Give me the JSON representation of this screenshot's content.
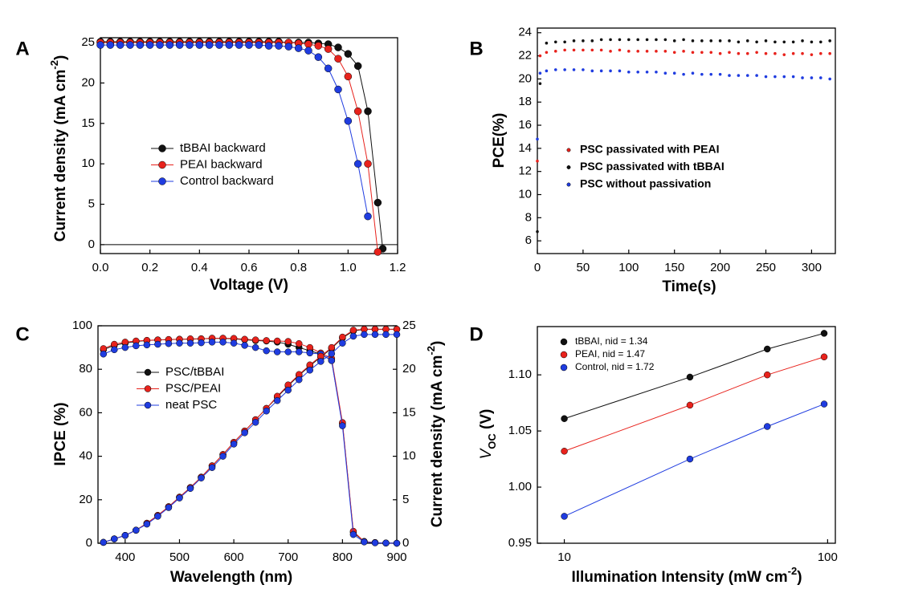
{
  "chart_data": [
    {
      "type": "line",
      "panel_label": "A",
      "x_label": [
        "Voltage (V)"
      ],
      "y_label": [
        "Current density (mA cm",
        "-2",
        ")"
      ],
      "xlim": [
        0,
        1.2
      ],
      "ylim": [
        -1.1,
        25.6
      ],
      "xticks": [
        {
          "value": 0,
          "label": "0.0"
        },
        0.2,
        0.4,
        0.6,
        0.8,
        {
          "value": 1,
          "label": "1.0"
        },
        1.2
      ],
      "yticks": [
        0,
        5,
        10,
        15,
        20,
        25
      ],
      "zero_line": true,
      "marker_size": 4.5,
      "legend_symbol": "line-marker",
      "x": [
        0,
        0.04,
        0.08,
        0.12,
        0.16,
        0.2,
        0.24,
        0.28,
        0.32,
        0.36,
        0.4,
        0.44,
        0.48,
        0.52,
        0.56,
        0.6,
        0.64,
        0.68,
        0.72,
        0.76,
        0.8,
        0.84,
        0.88,
        0.92,
        0.96,
        1.0,
        1.04,
        1.08,
        1.12,
        1.14
      ],
      "series": [
        {
          "name": "tBBAI backward",
          "color": "#111111",
          "values": [
            25.1,
            25.1,
            25.1,
            25.1,
            25.1,
            25.1,
            25.1,
            25.1,
            25.1,
            25.1,
            25.1,
            25.1,
            25.1,
            25.1,
            25.1,
            25.1,
            25.1,
            25.1,
            25.1,
            25.0,
            25.0,
            25.0,
            24.9,
            24.8,
            24.4,
            23.6,
            22.1,
            16.5,
            5.2,
            -0.5
          ]
        },
        {
          "name": "PEAI backward",
          "color": "#e8221c",
          "values": [
            25.0,
            25.0,
            25.0,
            25.0,
            25.0,
            25.0,
            25.0,
            25.0,
            25.0,
            25.0,
            25.0,
            25.0,
            25.0,
            25.0,
            25.0,
            25.0,
            25.0,
            25.0,
            25.0,
            25.0,
            24.9,
            24.8,
            24.6,
            24.2,
            23.0,
            20.8,
            16.5,
            10.0,
            -0.9,
            null
          ]
        },
        {
          "name": "Control backward",
          "color": "#1f3ce0",
          "values": [
            24.7,
            24.7,
            24.7,
            24.7,
            24.7,
            24.7,
            24.7,
            24.7,
            24.7,
            24.7,
            24.7,
            24.7,
            24.7,
            24.7,
            24.7,
            24.7,
            24.7,
            24.6,
            24.6,
            24.5,
            24.3,
            24.0,
            23.2,
            21.8,
            19.2,
            15.3,
            10.0,
            3.5,
            null,
            null
          ]
        }
      ]
    },
    {
      "type": "scatter",
      "panel_label": "B",
      "x_label": [
        "Time(s)"
      ],
      "y_label": [
        "PCE(%)"
      ],
      "xlim": [
        0,
        326
      ],
      "ylim": [
        4.9,
        24.4
      ],
      "xticks": [
        0,
        50,
        100,
        150,
        200,
        250,
        300
      ],
      "yticks": [
        6,
        8,
        10,
        12,
        14,
        16,
        18,
        20,
        22,
        24
      ],
      "marker_size": 1.8,
      "legend_symbol": "marker",
      "x": [
        0,
        3,
        10,
        20,
        30,
        40,
        50,
        60,
        70,
        80,
        90,
        100,
        110,
        120,
        130,
        140,
        150,
        160,
        170,
        180,
        190,
        200,
        210,
        220,
        230,
        240,
        250,
        260,
        270,
        280,
        290,
        300,
        310,
        320
      ],
      "series": [
        {
          "name": "PSC passivated with PEAI",
          "color": "#e8221c",
          "values": [
            12.9,
            22.0,
            22.3,
            22.4,
            22.5,
            22.5,
            22.5,
            22.5,
            22.5,
            22.4,
            22.5,
            22.4,
            22.4,
            22.4,
            22.4,
            22.4,
            22.3,
            22.4,
            22.3,
            22.3,
            22.3,
            22.2,
            22.3,
            22.2,
            22.2,
            22.3,
            22.2,
            22.2,
            22.1,
            22.2,
            22.2,
            22.1,
            22.2,
            22.2
          ]
        },
        {
          "name": "PSC passivated with tBBAI",
          "color": "#111111",
          "values": [
            6.8,
            19.6,
            23.1,
            23.2,
            23.2,
            23.3,
            23.3,
            23.3,
            23.4,
            23.4,
            23.4,
            23.4,
            23.4,
            23.4,
            23.4,
            23.4,
            23.3,
            23.4,
            23.3,
            23.3,
            23.3,
            23.3,
            23.3,
            23.2,
            23.3,
            23.2,
            23.3,
            23.2,
            23.2,
            23.2,
            23.3,
            23.2,
            23.2,
            23.3
          ]
        },
        {
          "name": "PSC without passivation",
          "color": "#1f3ce0",
          "values": [
            14.8,
            20.5,
            20.7,
            20.8,
            20.8,
            20.8,
            20.8,
            20.7,
            20.7,
            20.7,
            20.7,
            20.6,
            20.6,
            20.6,
            20.6,
            20.5,
            20.5,
            20.4,
            20.5,
            20.4,
            20.4,
            20.4,
            20.3,
            20.3,
            20.3,
            20.3,
            20.2,
            20.2,
            20.2,
            20.2,
            20.1,
            20.1,
            20.1,
            20.0
          ]
        }
      ]
    },
    {
      "type": "line",
      "panel_label": "C",
      "x_label": [
        "Wavelength (nm)"
      ],
      "y_label": [
        "IPCE (%)"
      ],
      "y2_label": [
        "Current density (mA cm",
        "-2",
        ")"
      ],
      "xlim": [
        350,
        900
      ],
      "ylim": [
        0,
        100
      ],
      "y2lim": [
        0,
        25
      ],
      "xticks": [
        400,
        500,
        600,
        700,
        800,
        900
      ],
      "yticks": [
        0,
        20,
        40,
        60,
        80,
        100
      ],
      "y2ticks": [
        0,
        5,
        10,
        15,
        20,
        25
      ],
      "marker_size": 4,
      "legend_symbol": "line-marker",
      "x": [
        360,
        380,
        400,
        420,
        440,
        460,
        480,
        500,
        520,
        540,
        560,
        580,
        600,
        620,
        640,
        660,
        680,
        700,
        720,
        740,
        760,
        780,
        800,
        820,
        840,
        860,
        880,
        900
      ],
      "series": [
        {
          "name": "PSC/tBBAI",
          "color": "#111111",
          "values": [
            89,
            91,
            92,
            92.8,
            93.2,
            93.5,
            93.6,
            93.8,
            93.8,
            94,
            94.2,
            94.2,
            94,
            93.6,
            93.2,
            93,
            92.5,
            91.5,
            90,
            88.5,
            87,
            84,
            55,
            5,
            0.8,
            0.3,
            0.1,
            0
          ]
        },
        {
          "name": "PSC/PEAI",
          "color": "#e8221c",
          "values": [
            89.5,
            91.5,
            92.5,
            93,
            93.3,
            93.5,
            93.7,
            93.8,
            94,
            94,
            94.3,
            94.3,
            94.2,
            93.8,
            93.5,
            93.2,
            93,
            92.8,
            91.8,
            90,
            87.5,
            85,
            55.5,
            5.5,
            0.8,
            0.3,
            0.1,
            0
          ]
        },
        {
          "name": "neat PSC",
          "color": "#1f3ce0",
          "values": [
            87,
            89,
            90,
            90.8,
            91.2,
            91.5,
            91.8,
            92,
            92,
            92.2,
            92.5,
            92.5,
            92,
            91,
            90,
            88.5,
            88,
            88,
            88,
            87.5,
            87,
            84,
            54,
            4,
            0.6,
            0.2,
            0.1,
            0
          ]
        },
        {
          "axis": "y2",
          "color": "#111111",
          "values": [
            0.1,
            0.5,
            0.9,
            1.5,
            2.3,
            3.2,
            4.2,
            5.3,
            6.4,
            7.6,
            8.9,
            10.2,
            11.6,
            12.9,
            14.2,
            15.5,
            16.8,
            18.1,
            19.3,
            20.4,
            21.4,
            22.4,
            23.6,
            24.4,
            24.6,
            24.6,
            24.6,
            24.6
          ]
        },
        {
          "axis": "y2",
          "color": "#e8221c",
          "values": [
            0.1,
            0.5,
            0.9,
            1.5,
            2.3,
            3.2,
            4.2,
            5.3,
            6.4,
            7.6,
            8.9,
            10.2,
            11.6,
            12.9,
            14.2,
            15.5,
            16.9,
            18.2,
            19.4,
            20.5,
            21.5,
            22.5,
            23.7,
            24.5,
            24.6,
            24.6,
            24.6,
            24.6
          ]
        },
        {
          "axis": "y2",
          "color": "#1f3ce0",
          "values": [
            0.1,
            0.5,
            0.9,
            1.5,
            2.2,
            3.1,
            4.1,
            5.2,
            6.3,
            7.5,
            8.7,
            10.0,
            11.4,
            12.7,
            13.9,
            15.2,
            16.4,
            17.6,
            18.8,
            19.9,
            20.9,
            21.8,
            23.0,
            23.8,
            24.0,
            24.0,
            24.0,
            24.0
          ]
        }
      ]
    },
    {
      "type": "line",
      "panel_label": "D",
      "xscale": "log",
      "x_label": [
        "Illumination Intensity (mW cm",
        "-2",
        ")"
      ],
      "y_label": [
        "V",
        "OC",
        " (V)"
      ],
      "xlim": [
        7.9,
        107
      ],
      "ylim": [
        0.95,
        1.143
      ],
      "xticks": [
        10,
        100
      ],
      "yticks": [
        0.95,
        {
          "value": 1.0,
          "label": "1.00"
        },
        {
          "value": 1.05,
          "label": "1.05"
        },
        {
          "value": 1.1,
          "label": "1.10"
        }
      ],
      "marker_size": 4,
      "legend_symbol": "marker",
      "x": [
        10,
        30,
        59,
        97
      ],
      "series": [
        {
          "name": "tBBAI, nid = 1.34",
          "color": "#111111",
          "values": [
            1.061,
            1.098,
            1.123,
            1.137
          ]
        },
        {
          "name": "PEAI, nid = 1.47",
          "color": "#e8221c",
          "values": [
            1.032,
            1.073,
            1.1,
            1.116
          ]
        },
        {
          "name": "Control, nid = 1.72",
          "color": "#1f3ce0",
          "values": [
            0.974,
            1.025,
            1.054,
            1.074
          ]
        }
      ]
    }
  ]
}
